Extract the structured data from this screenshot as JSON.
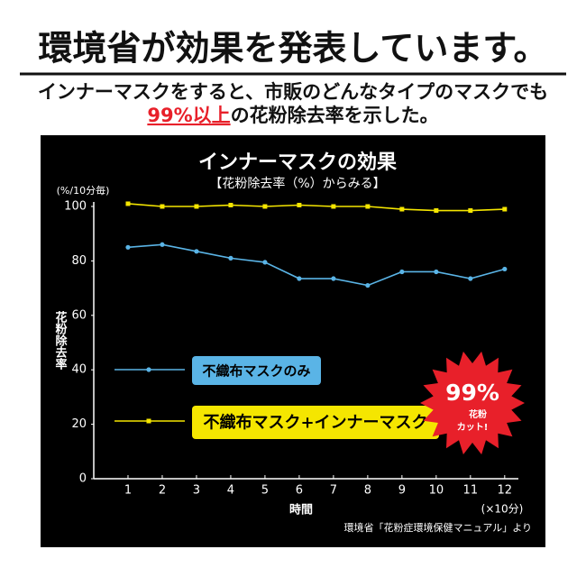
{
  "header": {
    "title": "環境省が効果を発表しています。",
    "line1": "インナーマスクをすると、市販のどんなタイプのマスクでも",
    "highlight": "99%以上",
    "line2": "の花粉除去率を示した。"
  },
  "chart_data": {
    "type": "line",
    "title": "インナーマスクの効果",
    "subtitle": "【花粉除去率（%）からみる】",
    "y_unit": "(%/10分毎)",
    "ylabel": "花粉除去率",
    "xlabel": "時間",
    "x_unit": "(×10分)",
    "source": "環境省「花粉症環境保健マニュアル」より",
    "x": [
      1,
      2,
      3,
      4,
      5,
      6,
      7,
      8,
      9,
      10,
      11,
      12
    ],
    "xlim": [
      0,
      12.4
    ],
    "xticks": [
      1,
      2,
      3,
      4,
      5,
      6,
      7,
      8,
      9,
      10,
      11,
      12
    ],
    "ylim": [
      0,
      100
    ],
    "yticks": [
      0,
      20,
      40,
      60,
      80,
      100
    ],
    "grid": false,
    "series": [
      {
        "name": "不織布マスクのみ",
        "color": "#5ab4e6",
        "marker": "circle",
        "values": [
          85,
          86,
          83.5,
          81,
          79.5,
          73.5,
          73.5,
          71,
          76,
          76,
          73.5,
          77
        ]
      },
      {
        "name": "不織布マスク+インナーマスク",
        "color": "#f5e600",
        "marker": "square",
        "values": [
          101,
          100,
          100,
          100.5,
          100,
          100.5,
          100,
          100,
          99,
          98.5,
          98.5,
          99
        ]
      }
    ],
    "badge": {
      "big": "99%",
      "line1": "花粉",
      "line2": "カット!",
      "color": "#e8202a"
    }
  }
}
